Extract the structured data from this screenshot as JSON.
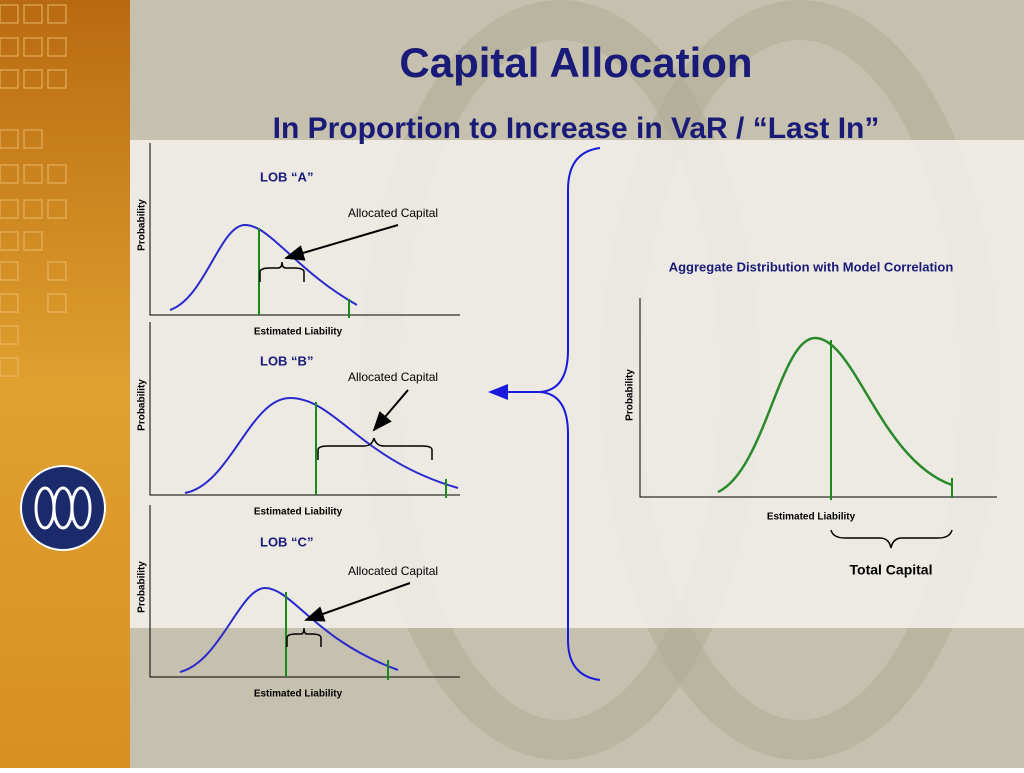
{
  "title": "Capital Allocation",
  "subtitle": "In Proportion to Increase in VaR / “Last In”",
  "panels": [
    {
      "label": "LOB “A”",
      "annotation": "Allocated Capital",
      "y_axis_label": "Probability",
      "x_axis_label": "Estimated Liability"
    },
    {
      "label": "LOB “B”",
      "annotation": "Allocated Capital",
      "y_axis_label": "Probability",
      "x_axis_label": "Estimated Liability"
    },
    {
      "label": "LOB “C”",
      "annotation": "Allocated Capital",
      "y_axis_label": "Probability",
      "x_axis_label": "Estimated Liability"
    }
  ],
  "aggregate": {
    "title": "Aggregate Distribution with Model Correlation",
    "y_axis_label": "Probability",
    "x_axis_label": "Estimated Liability",
    "annotation": "Total Capital"
  }
}
